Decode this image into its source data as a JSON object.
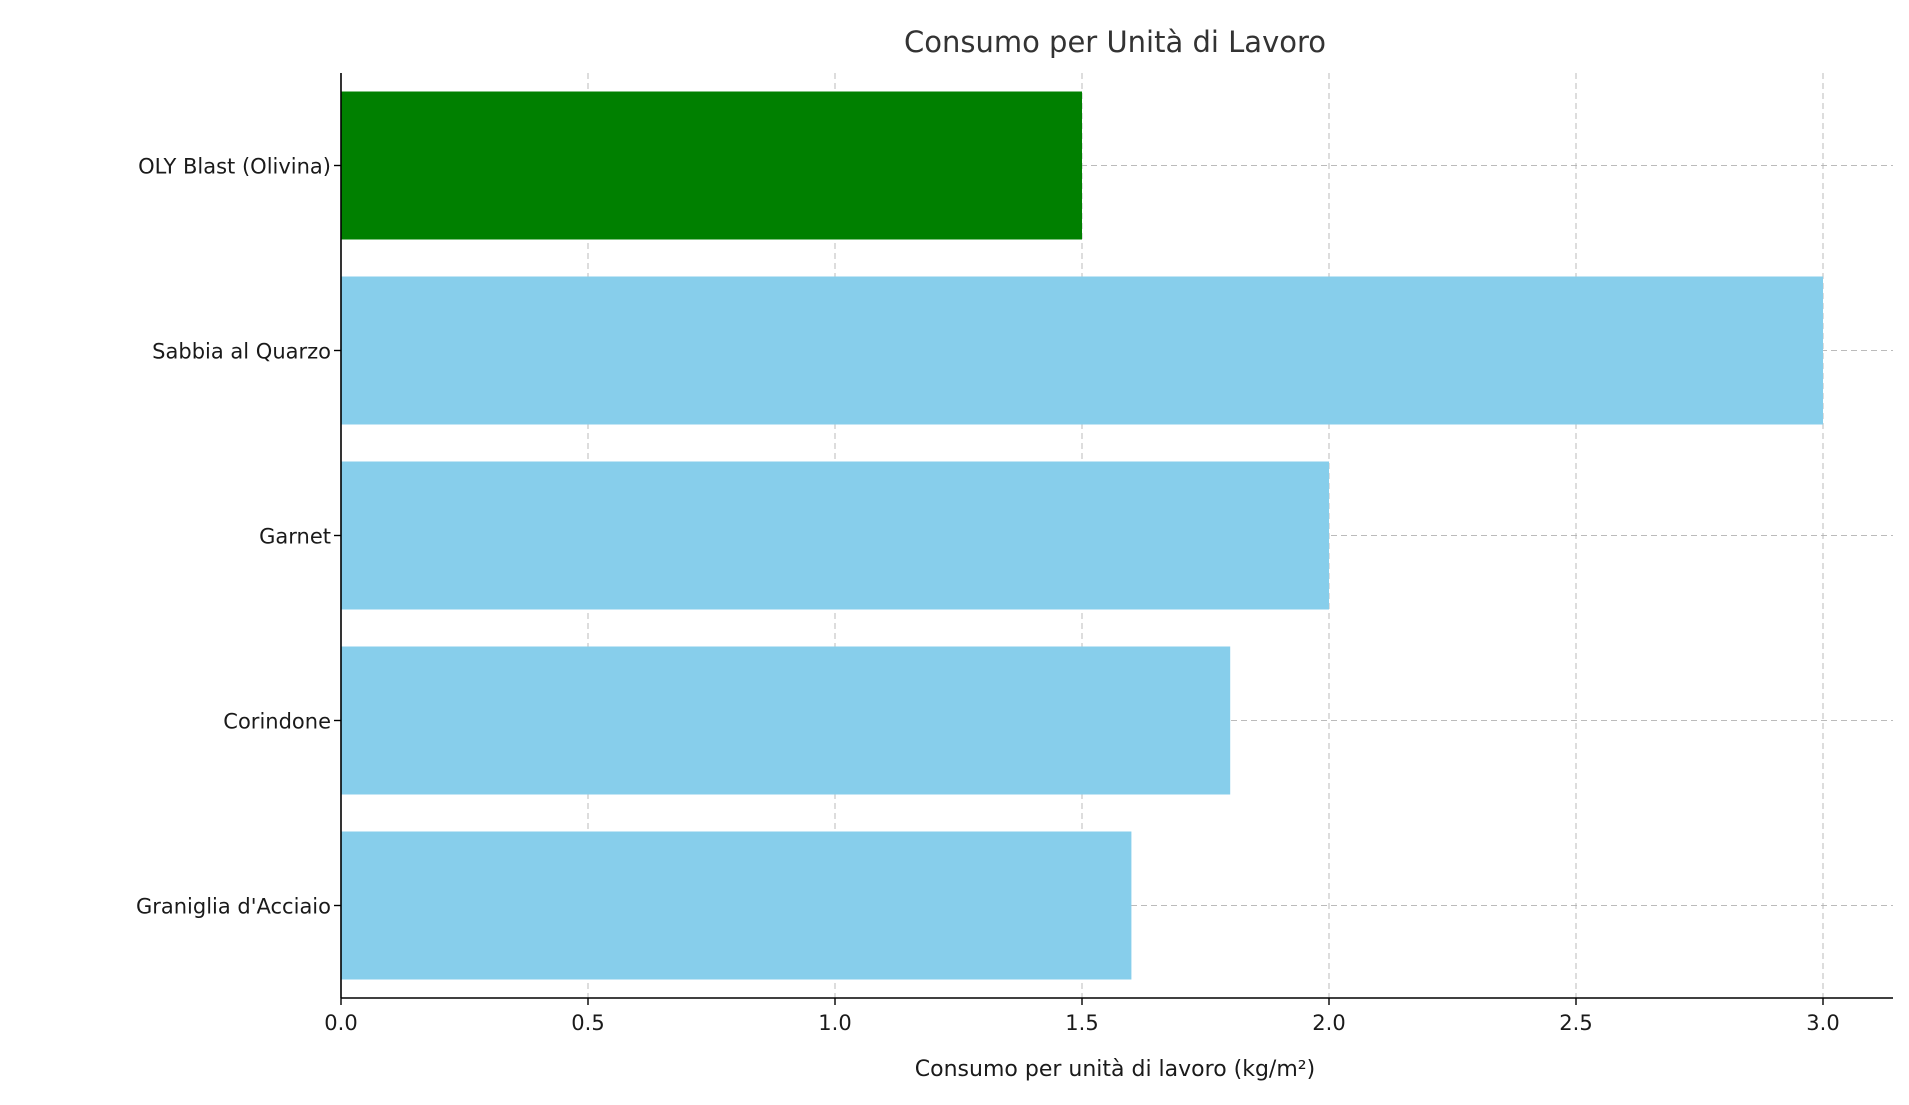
{
  "chart_data": {
    "type": "bar",
    "orientation": "horizontal",
    "title": "Consumo per Unità di Lavoro",
    "xlabel": "Consumo per unità di lavoro (kg/m²)",
    "ylabel": "",
    "categories": [
      "OLY Blast (Olivina)",
      "Sabbia al Quarzo",
      "Garnet",
      "Corindone",
      "Graniglia d'Acciaio"
    ],
    "values": [
      1.5,
      3.0,
      2.0,
      1.8,
      1.6
    ],
    "bar_colors": [
      "#008000",
      "#87ceeb",
      "#87ceeb",
      "#87ceeb",
      "#87ceeb"
    ],
    "xlim": [
      0,
      3.15
    ],
    "xticks": [
      0.0,
      0.5,
      1.0,
      1.5,
      2.0,
      2.5,
      3.0
    ],
    "xtick_labels": [
      "0.0",
      "0.5",
      "1.0",
      "1.5",
      "2.0",
      "2.5",
      "3.0"
    ],
    "grid": true,
    "grid_style": "dashed",
    "legend": false
  }
}
